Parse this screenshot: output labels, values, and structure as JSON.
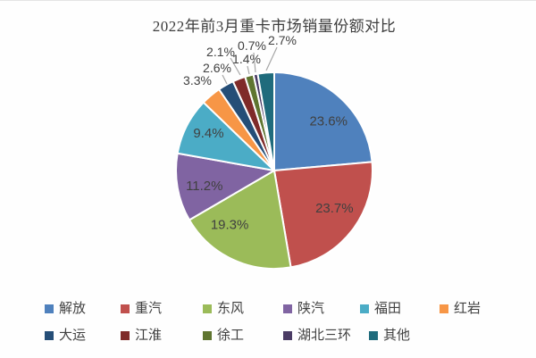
{
  "title": "2022年前3月重卡市场销量份额对比",
  "chart_data": {
    "type": "pie",
    "title": "2022年前3月重卡市场销量份额对比",
    "categories": [
      "解放",
      "重汽",
      "东风",
      "陕汽",
      "福田",
      "红岩",
      "大运",
      "江淮",
      "徐工",
      "湖北三环",
      "其他"
    ],
    "values": [
      23.6,
      23.7,
      19.3,
      11.2,
      9.4,
      3.3,
      2.6,
      2.1,
      1.4,
      0.7,
      2.7
    ],
    "labels": [
      "23.6%",
      "23.7%",
      "19.3%",
      "11.2%",
      "9.4%",
      "3.3%",
      "2.6%",
      "2.1%",
      "1.4%",
      "0.7%",
      "2.7%"
    ],
    "unit": "%",
    "colors": [
      "#4F81BD",
      "#C0504D",
      "#9BBB59",
      "#8064A2",
      "#4BACC6",
      "#F79646",
      "#254E77",
      "#7F2B29",
      "#5F7530",
      "#4A3B64",
      "#1F6B7C"
    ],
    "start_angle_deg": 0,
    "direction": "clockwise",
    "legend_position": "bottom",
    "leader_line_color": "#a6a6a6",
    "label_color": "#404040",
    "slice_border_color": "#ffffff"
  }
}
